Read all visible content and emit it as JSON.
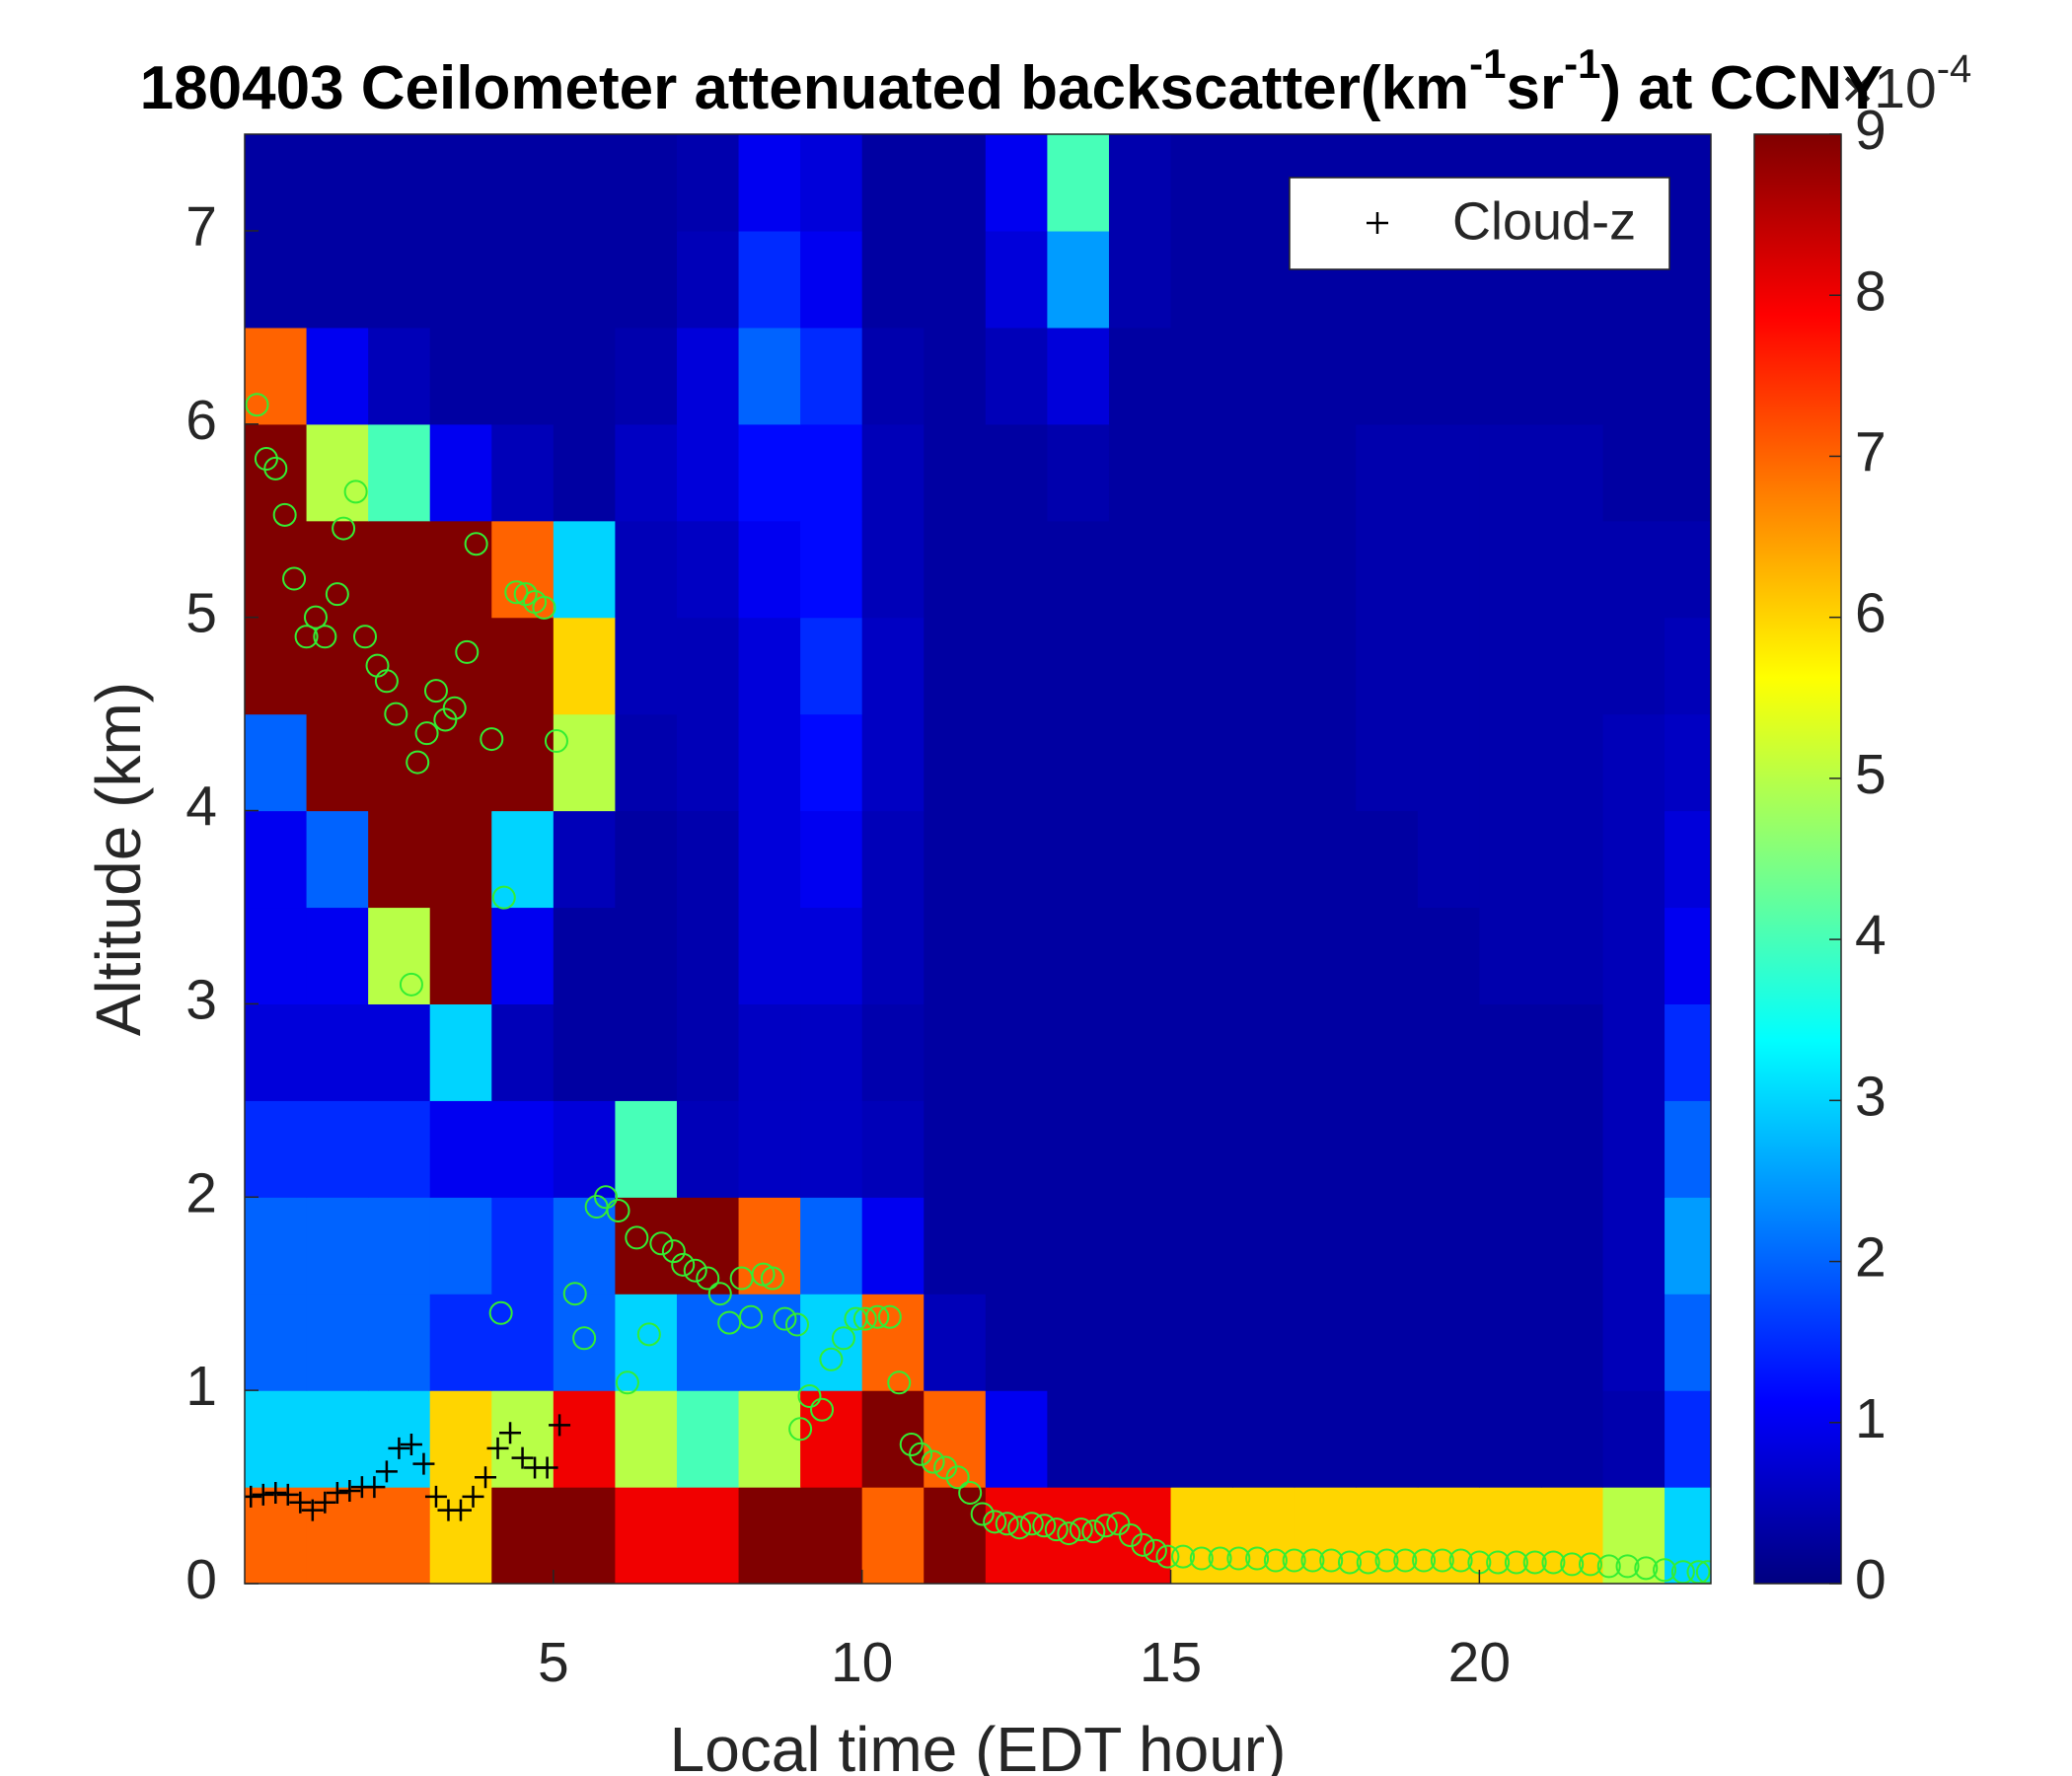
{
  "chart_data": {
    "type": "heatmap",
    "title_parts": [
      "180403 Ceilometer attenuated backscatter(km",
      "-1",
      "sr",
      "-1",
      ") at CCNY"
    ],
    "title_superscripts": [
      1,
      3
    ],
    "x_label": "Local time (EDT hour)",
    "y_label": "Altitude (km)",
    "xlim": [
      0,
      23.75
    ],
    "ylim": [
      0,
      7.5
    ],
    "xticks": [
      5,
      10,
      15,
      20
    ],
    "yticks": [
      0,
      1,
      2,
      3,
      4,
      5,
      6,
      7
    ],
    "colormap": "jet",
    "clim": [
      0,
      9
    ],
    "colorbar_ticks": [
      0,
      1,
      2,
      3,
      4,
      5,
      6,
      7,
      8,
      9
    ],
    "colorbar_scale": {
      "base": "×10",
      "exponent": "-4"
    },
    "legend_position": "upper right",
    "x_edges": [
      0,
      1,
      2,
      3,
      4,
      5,
      6,
      7,
      8,
      9,
      10,
      11,
      12,
      13,
      14,
      15,
      16,
      17,
      18,
      19,
      20,
      21,
      22,
      23,
      24
    ],
    "y_edges": [
      0,
      0.5,
      1,
      1.5,
      2,
      2.5,
      3,
      3.5,
      4,
      4.5,
      5,
      5.5,
      6,
      6.5,
      7,
      7.5
    ],
    "z": [
      [
        7,
        7,
        7,
        6,
        9,
        9,
        8,
        8,
        9,
        9,
        7,
        9,
        8,
        8,
        8,
        6,
        6,
        6,
        6,
        6,
        6,
        6,
        5,
        3
      ],
      [
        3,
        3,
        3,
        6,
        5,
        8,
        5,
        4,
        5,
        8,
        9,
        7,
        1,
        0.3,
        0.3,
        0.3,
        0.3,
        0.3,
        0.3,
        0.3,
        0.3,
        0.3,
        0.4,
        1.5
      ],
      [
        2,
        2,
        2,
        1.5,
        1.5,
        2,
        3,
        2,
        2,
        3,
        7,
        0.5,
        0.3,
        0.3,
        0.3,
        0.3,
        0.3,
        0.3,
        0.3,
        0.3,
        0.3,
        0.3,
        0.5,
        2
      ],
      [
        2,
        2,
        2,
        2,
        1.5,
        2,
        9,
        9,
        7,
        2,
        1,
        0.3,
        0.3,
        0.3,
        0.3,
        0.3,
        0.3,
        0.3,
        0.3,
        0.3,
        0.3,
        0.3,
        0.5,
        2.5
      ],
      [
        1.5,
        1.5,
        1.5,
        1,
        1,
        0.8,
        4,
        0.5,
        0.6,
        0.6,
        0.5,
        0.3,
        0.3,
        0.3,
        0.3,
        0.3,
        0.3,
        0.3,
        0.3,
        0.3,
        0.3,
        0.3,
        0.5,
        2
      ],
      [
        0.8,
        0.8,
        0.8,
        3,
        0.5,
        0.3,
        0.3,
        0.4,
        0.6,
        0.6,
        0.4,
        0.3,
        0.3,
        0.3,
        0.3,
        0.3,
        0.3,
        0.3,
        0.3,
        0.3,
        0.3,
        0.3,
        0.5,
        1.5
      ],
      [
        1,
        1,
        5,
        9,
        1,
        0.3,
        0.3,
        0.4,
        0.8,
        0.8,
        0.5,
        0.3,
        0.3,
        0.3,
        0.3,
        0.3,
        0.3,
        0.3,
        0.3,
        0.3,
        0.4,
        0.4,
        0.5,
        1
      ],
      [
        1,
        2,
        9,
        9,
        3,
        0.5,
        0.3,
        0.4,
        0.8,
        1,
        0.5,
        0.3,
        0.3,
        0.3,
        0.3,
        0.3,
        0.3,
        0.3,
        0.3,
        0.4,
        0.4,
        0.4,
        0.5,
        0.8
      ],
      [
        2,
        9,
        9,
        9,
        9,
        5,
        0.4,
        0.5,
        0.8,
        1.2,
        0.6,
        0.3,
        0.3,
        0.3,
        0.3,
        0.3,
        0.3,
        0.3,
        0.4,
        0.4,
        0.4,
        0.4,
        0.5,
        0.6
      ],
      [
        9,
        9,
        9,
        9,
        9,
        6,
        0.5,
        0.5,
        0.8,
        1.5,
        0.6,
        0.3,
        0.3,
        0.3,
        0.3,
        0.3,
        0.3,
        0.3,
        0.4,
        0.4,
        0.4,
        0.4,
        0.4,
        0.5
      ],
      [
        9,
        9,
        9,
        9,
        7,
        3,
        0.5,
        0.6,
        1,
        1.2,
        0.5,
        0.3,
        0.3,
        0.3,
        0.3,
        0.3,
        0.3,
        0.3,
        0.4,
        0.4,
        0.4,
        0.4,
        0.4,
        0.4
      ],
      [
        9,
        5,
        4,
        1,
        0.5,
        0.3,
        0.6,
        0.8,
        1.2,
        1.2,
        0.5,
        0.3,
        0.3,
        0.4,
        0.3,
        0.3,
        0.3,
        0.3,
        0.4,
        0.4,
        0.4,
        0.4,
        0.3,
        0.3
      ],
      [
        7,
        1,
        0.5,
        0.3,
        0.3,
        0.3,
        0.4,
        0.8,
        2,
        1.5,
        0.4,
        0.3,
        0.5,
        0.8,
        0.3,
        0.3,
        0.3,
        0.3,
        0.3,
        0.3,
        0.3,
        0.3,
        0.3,
        0.3
      ],
      [
        0.3,
        0.3,
        0.3,
        0.3,
        0.3,
        0.3,
        0.3,
        0.5,
        1.5,
        1,
        0.3,
        0.3,
        0.8,
        2.5,
        0.4,
        0.3,
        0.3,
        0.3,
        0.3,
        0.3,
        0.3,
        0.3,
        0.3,
        0.3
      ],
      [
        0.3,
        0.3,
        0.3,
        0.3,
        0.3,
        0.3,
        0.3,
        0.4,
        1,
        0.8,
        0.3,
        0.3,
        1,
        4,
        0.4,
        0.3,
        0.3,
        0.3,
        0.3,
        0.3,
        0.3,
        0.3,
        0.3,
        0.3
      ]
    ],
    "series": [
      {
        "name": "Cloud-z",
        "color": "#000000",
        "marker": "plus",
        "x": [
          0.1,
          0.3,
          0.5,
          0.7,
          0.9,
          1.1,
          1.3,
          1.5,
          1.7,
          1.9,
          2.1,
          2.3,
          2.5,
          2.7,
          2.9,
          3.1,
          3.3,
          3.5,
          3.7,
          3.9,
          4.1,
          4.3,
          4.5,
          4.7,
          4.9,
          5.1
        ],
        "values": [
          0.45,
          0.46,
          0.47,
          0.46,
          0.42,
          0.38,
          0.42,
          0.47,
          0.48,
          0.5,
          0.5,
          0.58,
          0.7,
          0.72,
          0.62,
          0.45,
          0.38,
          0.38,
          0.45,
          0.55,
          0.7,
          0.78,
          0.65,
          0.6,
          0.6,
          0.82
        ]
      },
      {
        "color": "#33ee33",
        "marker": "circle",
        "x": [
          0.2,
          0.35,
          0.5,
          0.65,
          0.8,
          1.0,
          1.15,
          1.3,
          1.5,
          1.6,
          1.8,
          1.95,
          2.15,
          2.3,
          2.45,
          2.7,
          2.8,
          2.95,
          3.1,
          3.25,
          3.4,
          3.6,
          3.75,
          4.0,
          4.2,
          4.4,
          4.55,
          4.7,
          4.85,
          5.05,
          4.15,
          5.35,
          5.5,
          5.7,
          5.85,
          6.05,
          6.2,
          6.35,
          6.55,
          6.75,
          6.95,
          7.1,
          7.3,
          7.5,
          7.7,
          7.85,
          8.05,
          8.2,
          8.4,
          8.55,
          8.75,
          8.95,
          9.0,
          9.15,
          9.35,
          9.5,
          9.7,
          9.9,
          10.05,
          10.25,
          10.45,
          10.6,
          10.8,
          10.95,
          11.15,
          11.35,
          11.55,
          11.75,
          11.95,
          12.15,
          12.35,
          12.55,
          12.75,
          12.95,
          13.15,
          13.35,
          13.55,
          13.75,
          13.95,
          14.15,
          14.35,
          14.55,
          14.75,
          14.95,
          15.2,
          15.5,
          15.8,
          16.1,
          16.4,
          16.7,
          17.0,
          17.3,
          17.6,
          17.9,
          18.2,
          18.5,
          18.8,
          19.1,
          19.4,
          19.7,
          20.0,
          20.3,
          20.6,
          20.9,
          21.2,
          21.5,
          21.8,
          22.1,
          22.4,
          22.7,
          23.0,
          23.3,
          23.55,
          23.7
        ],
        "values": [
          6.1,
          5.82,
          5.77,
          5.53,
          5.2,
          4.9,
          5.0,
          4.9,
          5.12,
          5.46,
          5.65,
          4.9,
          4.75,
          4.67,
          4.5,
          3.1,
          4.25,
          4.4,
          4.62,
          4.47,
          4.53,
          4.82,
          5.38,
          4.37,
          3.55,
          5.13,
          5.12,
          5.08,
          5.05,
          4.36,
          1.4,
          1.5,
          1.27,
          1.95,
          2.0,
          1.93,
          1.04,
          1.79,
          1.29,
          1.76,
          1.72,
          1.65,
          1.62,
          1.58,
          1.5,
          1.35,
          1.58,
          1.38,
          1.6,
          1.58,
          1.37,
          1.34,
          0.8,
          0.97,
          0.9,
          1.16,
          1.27,
          1.37,
          1.37,
          1.38,
          1.38,
          1.04,
          0.72,
          0.67,
          0.63,
          0.6,
          0.55,
          0.47,
          0.36,
          0.32,
          0.31,
          0.29,
          0.31,
          0.3,
          0.28,
          0.26,
          0.28,
          0.27,
          0.3,
          0.31,
          0.25,
          0.2,
          0.17,
          0.14,
          0.14,
          0.13,
          0.13,
          0.13,
          0.13,
          0.12,
          0.12,
          0.12,
          0.12,
          0.11,
          0.11,
          0.12,
          0.12,
          0.12,
          0.12,
          0.12,
          0.11,
          0.11,
          0.11,
          0.11,
          0.11,
          0.1,
          0.1,
          0.09,
          0.09,
          0.08,
          0.07,
          0.06,
          0.06,
          0.06
        ]
      }
    ]
  }
}
